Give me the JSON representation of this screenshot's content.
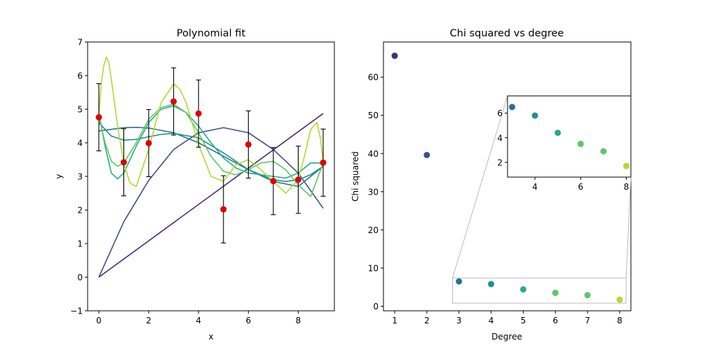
{
  "chart_data": [
    {
      "type": "line",
      "title": "Polynomial fit",
      "xlabel": "x",
      "ylabel": "y",
      "xlim": [
        -0.45,
        9.45
      ],
      "ylim": [
        -1,
        7
      ],
      "xticks": [
        0,
        2,
        4,
        6,
        8
      ],
      "yticks": [
        -1,
        0,
        1,
        2,
        3,
        4,
        5,
        6,
        7
      ],
      "grid": false,
      "data_points": {
        "x": [
          0,
          1,
          2,
          3,
          4,
          5,
          6,
          7,
          8,
          9
        ],
        "y": [
          4.76,
          3.42,
          3.99,
          5.23,
          4.87,
          2.02,
          3.95,
          2.86,
          2.9,
          3.41
        ],
        "yerr": 1.0,
        "color": "#dd0000"
      },
      "series": [
        {
          "degree": 1,
          "color": "#472c7a",
          "x": [
            0,
            9
          ],
          "y": [
            0,
            4.87
          ]
        },
        {
          "degree": 2,
          "color": "#3b518b",
          "x": [
            0,
            1,
            2,
            3,
            4,
            5,
            6,
            7,
            8,
            9
          ],
          "y": [
            0,
            1.65,
            2.88,
            3.8,
            4.3,
            4.45,
            4.3,
            3.8,
            3.1,
            2.05
          ]
        },
        {
          "degree": 3,
          "color": "#2c718e",
          "x": [
            0,
            0.5,
            1,
            1.5,
            2,
            3,
            4,
            5,
            6,
            7,
            8,
            9
          ],
          "y": [
            4.35,
            4.4,
            4.45,
            4.46,
            4.44,
            4.3,
            4.0,
            3.6,
            3.2,
            2.85,
            2.7,
            3.3
          ]
        },
        {
          "degree": 4,
          "color": "#21908d",
          "x": [
            0,
            0.5,
            1,
            1.5,
            2,
            2.5,
            3,
            4,
            5,
            6,
            7,
            7.5,
            8,
            8.5,
            9
          ],
          "y": [
            4.6,
            4.2,
            4.08,
            4.1,
            4.18,
            4.25,
            4.28,
            4.15,
            3.7,
            3.2,
            2.9,
            2.85,
            2.9,
            3.05,
            3.3
          ]
        },
        {
          "degree": 5,
          "color": "#27ad81",
          "x": [
            0,
            0.25,
            0.5,
            0.75,
            1,
            1.5,
            2,
            2.5,
            3,
            3.5,
            4,
            4.5,
            5,
            5.5,
            6,
            6.5,
            7,
            7.5,
            8,
            8.5,
            9
          ],
          "y": [
            4.9,
            3.9,
            3.1,
            2.93,
            3.1,
            3.9,
            4.6,
            5.0,
            5.1,
            4.9,
            4.5,
            4.0,
            3.55,
            3.25,
            3.1,
            3.05,
            3.0,
            2.95,
            3.1,
            3.4,
            3.4
          ]
        },
        {
          "degree": 6,
          "color": "#5cc863",
          "x": [
            0,
            0.25,
            0.5,
            0.75,
            1,
            1.5,
            2,
            2.5,
            3,
            3.5,
            4,
            4.5,
            5,
            5.5,
            6,
            6.5,
            7,
            7.5,
            8,
            8.5,
            9
          ],
          "y": [
            4.8,
            4.0,
            3.45,
            3.3,
            3.4,
            4.0,
            4.7,
            5.05,
            5.15,
            4.9,
            4.3,
            3.6,
            3.15,
            3.05,
            3.2,
            3.4,
            3.45,
            3.2,
            2.75,
            2.4,
            3.4
          ]
        },
        {
          "degree": 7,
          "color": "#addc30",
          "x": [
            0,
            0.1,
            0.2,
            0.3,
            0.4,
            0.5,
            0.75,
            1,
            1.25,
            1.5,
            2,
            2.5,
            3,
            3.25,
            3.5,
            4,
            4.5,
            5,
            5.5,
            6,
            6.5,
            7,
            7.5,
            8,
            8.25,
            8.5,
            8.75,
            8.9,
            9
          ],
          "y": [
            4.8,
            5.8,
            6.3,
            6.55,
            6.4,
            5.9,
            4.5,
            3.4,
            2.8,
            2.7,
            3.8,
            5.2,
            5.75,
            5.6,
            5.2,
            3.95,
            3.0,
            2.85,
            3.35,
            3.5,
            3.2,
            2.85,
            2.5,
            2.9,
            3.6,
            4.4,
            4.6,
            4.1,
            3.4
          ]
        }
      ]
    },
    {
      "type": "scatter",
      "title": "Chi squared vs degree",
      "xlabel": "Degree",
      "ylabel": "Chi squared",
      "xlim": [
        0.65,
        8.35
      ],
      "ylim": [
        -1.2,
        69.2
      ],
      "xticks": [
        1,
        2,
        3,
        4,
        5,
        6,
        7,
        8
      ],
      "yticks": [
        0,
        10,
        20,
        30,
        40,
        50,
        60
      ],
      "grid": false,
      "points": [
        {
          "x": 1,
          "y": 65.6,
          "color": "#472c7a"
        },
        {
          "x": 2,
          "y": 39.6,
          "color": "#3b518b"
        },
        {
          "x": 3,
          "y": 6.5,
          "color": "#2c718e"
        },
        {
          "x": 4,
          "y": 5.8,
          "color": "#21908d"
        },
        {
          "x": 5,
          "y": 4.4,
          "color": "#27ad81"
        },
        {
          "x": 6,
          "y": 3.5,
          "color": "#5cc863"
        },
        {
          "x": 7,
          "y": 2.9,
          "color": "#5cc863"
        },
        {
          "x": 8,
          "y": 1.7,
          "color": "#addc30"
        }
      ],
      "inset": {
        "xlim": [
          2.8,
          8.2
        ],
        "ylim": [
          0.8,
          7.4
        ],
        "xticks": [
          4,
          6,
          8
        ],
        "yticks": [
          2,
          4,
          6
        ]
      }
    }
  ]
}
